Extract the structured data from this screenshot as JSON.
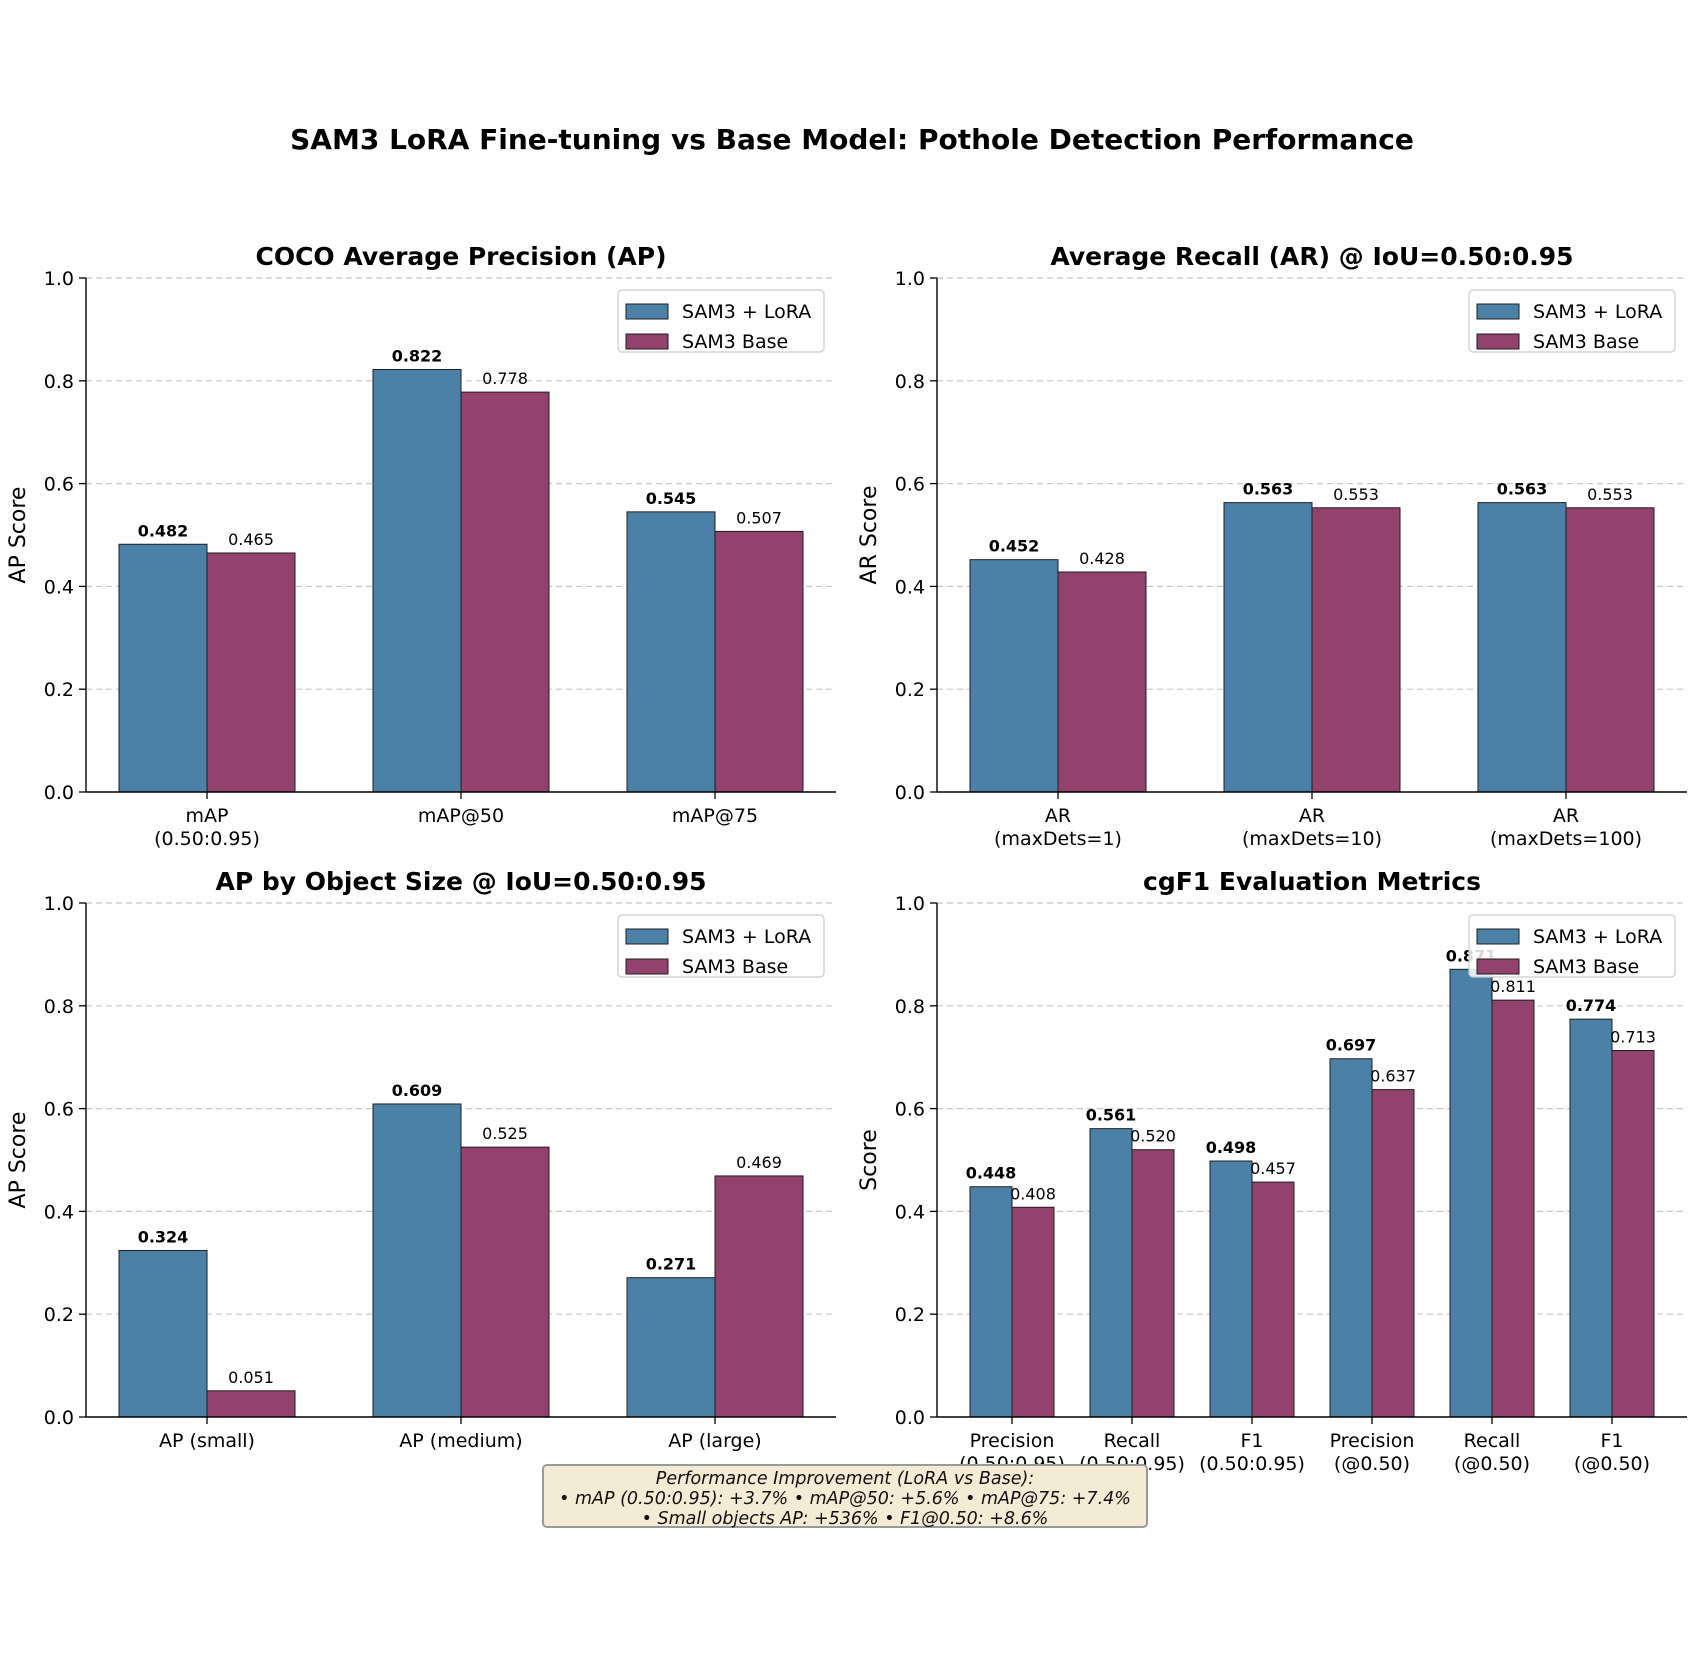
{
  "figure_title": "SAM3 LoRA Fine-tuning vs Base Model: Pothole Detection Performance",
  "colors": {
    "lora": "#4b81a6",
    "base": "#93416d",
    "grid": "#c8c8c8",
    "note_bg": "#f4ebd4"
  },
  "legend": [
    "SAM3 + LoRA",
    "SAM3 Base"
  ],
  "chart_data": [
    {
      "type": "bar",
      "title": "COCO Average Precision (AP)",
      "ylabel": "AP Score",
      "ylim": [
        0,
        1.0
      ],
      "yticks": [
        "0.0",
        "0.2",
        "0.4",
        "0.6",
        "0.8",
        "1.0"
      ],
      "grid": true,
      "legend_position": "upper right",
      "categories": [
        [
          "mAP",
          "(0.50:0.95)"
        ],
        [
          "mAP@50"
        ],
        [
          "mAP@75"
        ]
      ],
      "series": [
        {
          "name": "SAM3 + LoRA",
          "values": [
            0.482,
            0.822,
            0.545
          ],
          "labels": [
            "0.482",
            "0.822",
            "0.545"
          ]
        },
        {
          "name": "SAM3 Base",
          "values": [
            0.465,
            0.778,
            0.507
          ],
          "labels": [
            "0.465",
            "0.778",
            "0.507"
          ]
        }
      ]
    },
    {
      "type": "bar",
      "title": "Average Recall (AR) @ IoU=0.50:0.95",
      "ylabel": "AR Score",
      "ylim": [
        0,
        1.0
      ],
      "yticks": [
        "0.0",
        "0.2",
        "0.4",
        "0.6",
        "0.8",
        "1.0"
      ],
      "grid": true,
      "legend_position": "upper right",
      "categories": [
        [
          "AR",
          "(maxDets=1)"
        ],
        [
          "AR",
          "(maxDets=10)"
        ],
        [
          "AR",
          "(maxDets=100)"
        ]
      ],
      "series": [
        {
          "name": "SAM3 + LoRA",
          "values": [
            0.452,
            0.563,
            0.563
          ],
          "labels": [
            "0.452",
            "0.563",
            "0.563"
          ]
        },
        {
          "name": "SAM3 Base",
          "values": [
            0.428,
            0.553,
            0.553
          ],
          "labels": [
            "0.428",
            "0.553",
            "0.553"
          ]
        }
      ]
    },
    {
      "type": "bar",
      "title": "AP by Object Size @ IoU=0.50:0.95",
      "ylabel": "AP Score",
      "ylim": [
        0,
        1.0
      ],
      "yticks": [
        "0.0",
        "0.2",
        "0.4",
        "0.6",
        "0.8",
        "1.0"
      ],
      "grid": true,
      "legend_position": "upper right",
      "categories": [
        [
          "AP (small)"
        ],
        [
          "AP (medium)"
        ],
        [
          "AP (large)"
        ]
      ],
      "series": [
        {
          "name": "SAM3 + LoRA",
          "values": [
            0.324,
            0.609,
            0.271
          ],
          "labels": [
            "0.324",
            "0.609",
            "0.271"
          ]
        },
        {
          "name": "SAM3 Base",
          "values": [
            0.051,
            0.525,
            0.469
          ],
          "labels": [
            "0.051",
            "0.525",
            "0.469"
          ]
        }
      ]
    },
    {
      "type": "bar",
      "title": "cgF1 Evaluation Metrics",
      "ylabel": "Score",
      "ylim": [
        0,
        1.0
      ],
      "yticks": [
        "0.0",
        "0.2",
        "0.4",
        "0.6",
        "0.8",
        "1.0"
      ],
      "grid": true,
      "legend_position": "upper right",
      "categories": [
        [
          "Precision",
          "(0.50:0.95)"
        ],
        [
          "Recall",
          "(0.50:0.95)"
        ],
        [
          "F1",
          "(0.50:0.95)"
        ],
        [
          "Precision",
          "(@0.50)"
        ],
        [
          "Recall",
          "(@0.50)"
        ],
        [
          "F1",
          "(@0.50)"
        ]
      ],
      "series": [
        {
          "name": "SAM3 + LoRA",
          "values": [
            0.448,
            0.561,
            0.498,
            0.697,
            0.871,
            0.774
          ],
          "labels": [
            "0.448",
            "0.561",
            "0.498",
            "0.697",
            "0.871",
            "0.774"
          ]
        },
        {
          "name": "SAM3 Base",
          "values": [
            0.408,
            0.52,
            0.457,
            0.637,
            0.811,
            0.713
          ],
          "labels": [
            "0.408",
            "0.520",
            "0.457",
            "0.637",
            "0.811",
            "0.713"
          ]
        }
      ]
    }
  ],
  "note": {
    "line1": "Performance Improvement (LoRA vs Base):",
    "line2": "• mAP (0.50:0.95): +3.7%  • mAP@50: +5.6%  • mAP@75: +7.4%",
    "line3": "• Small objects AP: +536%  • F1@0.50: +8.6%"
  }
}
